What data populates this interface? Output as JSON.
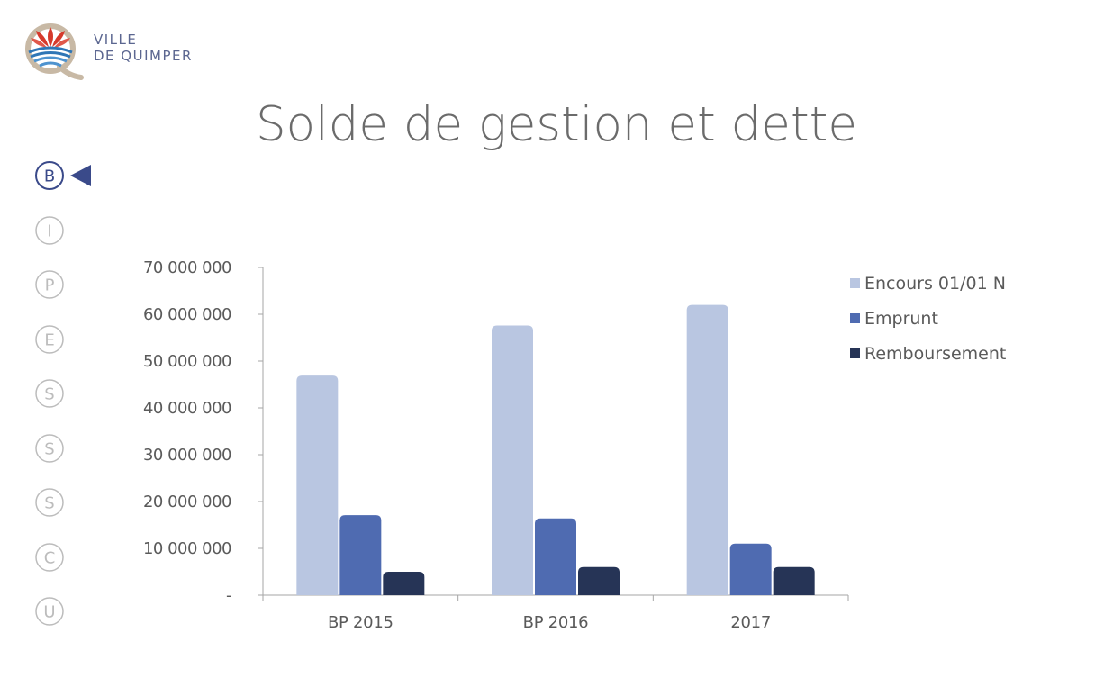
{
  "logo": {
    "line1": "VILLE",
    "line2": "DE QUIMPER"
  },
  "title": "Solde de gestion et dette",
  "nav": {
    "items": [
      {
        "letter": "B",
        "active": true
      },
      {
        "letter": "I",
        "active": false
      },
      {
        "letter": "P",
        "active": false
      },
      {
        "letter": "E",
        "active": false
      },
      {
        "letter": "S",
        "active": false
      },
      {
        "letter": "S",
        "active": false
      },
      {
        "letter": "S",
        "active": false
      },
      {
        "letter": "C",
        "active": false
      },
      {
        "letter": "U",
        "active": false
      }
    ]
  },
  "colors": {
    "nav_active": "#3a4a8a",
    "nav_inactive": "#bcbcbc",
    "axis": "#a6a6a6",
    "tick_text": "#5a5a5a"
  },
  "chart_data": {
    "type": "bar",
    "categories": [
      "BP 2015",
      "BP 2016",
      "2017"
    ],
    "series": [
      {
        "name": "Encours 01/01 N",
        "color": "#b9c6e1",
        "values": [
          46900000,
          57600000,
          62000000
        ]
      },
      {
        "name": "Emprunt",
        "color": "#4f6bb1",
        "values": [
          17100000,
          16400000,
          11000000
        ]
      },
      {
        "name": "Remboursement",
        "color": "#263456",
        "values": [
          5000000,
          6000000,
          6000000
        ]
      }
    ],
    "yticks": [
      {
        "value": 0,
        "label": "-"
      },
      {
        "value": 10000000,
        "label": "10 000 000"
      },
      {
        "value": 20000000,
        "label": "20 000 000"
      },
      {
        "value": 30000000,
        "label": "30 000 000"
      },
      {
        "value": 40000000,
        "label": "40 000 000"
      },
      {
        "value": 50000000,
        "label": "50 000 000"
      },
      {
        "value": 60000000,
        "label": "60 000 000"
      },
      {
        "value": 70000000,
        "label": "70 000 000"
      }
    ],
    "ylim": [
      0,
      70000000
    ],
    "legend_position": "right",
    "grid": false
  }
}
